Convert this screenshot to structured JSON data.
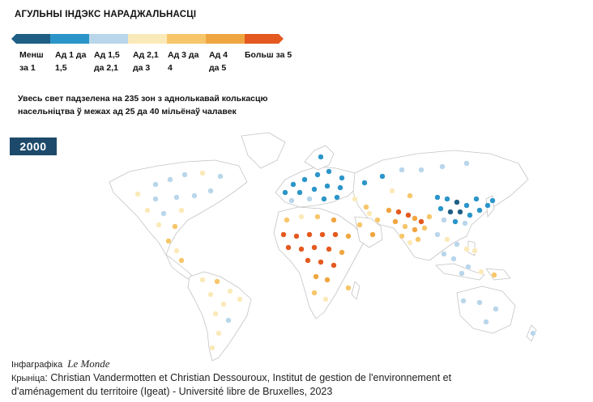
{
  "title": "АГУЛЬНЫ ІНДЭКС НАРАДЖАЛЬНАСЦІ",
  "legend": {
    "items": [
      {
        "label_line1": "Менш",
        "label_line2": "за 1",
        "color": "#1f5f86"
      },
      {
        "label_line1": "Ад 1 да",
        "label_line2": "1,5",
        "color": "#2b95c9"
      },
      {
        "label_line1": "Ад 1,5",
        "label_line2": "да 2,1",
        "color": "#b9d6ea"
      },
      {
        "label_line1": "Ад 2,1",
        "label_line2": "да 3",
        "color": "#fbeab9"
      },
      {
        "label_line1": "Ад 3 да",
        "label_line2": "4",
        "color": "#f7c66a"
      },
      {
        "label_line1": "Ад 4",
        "label_line2": "да 5",
        "color": "#f0a640"
      },
      {
        "label_line1": "Больш за 5",
        "label_line2": "",
        "color": "#e4591f"
      }
    ]
  },
  "subtitle": "Увесь свет падзелена на 235 зон з аднолькавай колькасцю насельніцтва ў межах ад 25 да 40 мільёнаў чалавек",
  "year": "2000",
  "credit": {
    "label": "Інфаграфіка",
    "brand": "Le Monde"
  },
  "source": {
    "label": "Крыніца",
    "text": ": Christian Vandermotten et Christian Dessouroux, Institut de gestion de l'environnement et d'aménagement du territoire (Igeat) - Université libre de Bruxelles, 2023"
  },
  "colors": {
    "land_stroke": "#bdbdbd",
    "year_bg": "#1d4a6a"
  }
}
